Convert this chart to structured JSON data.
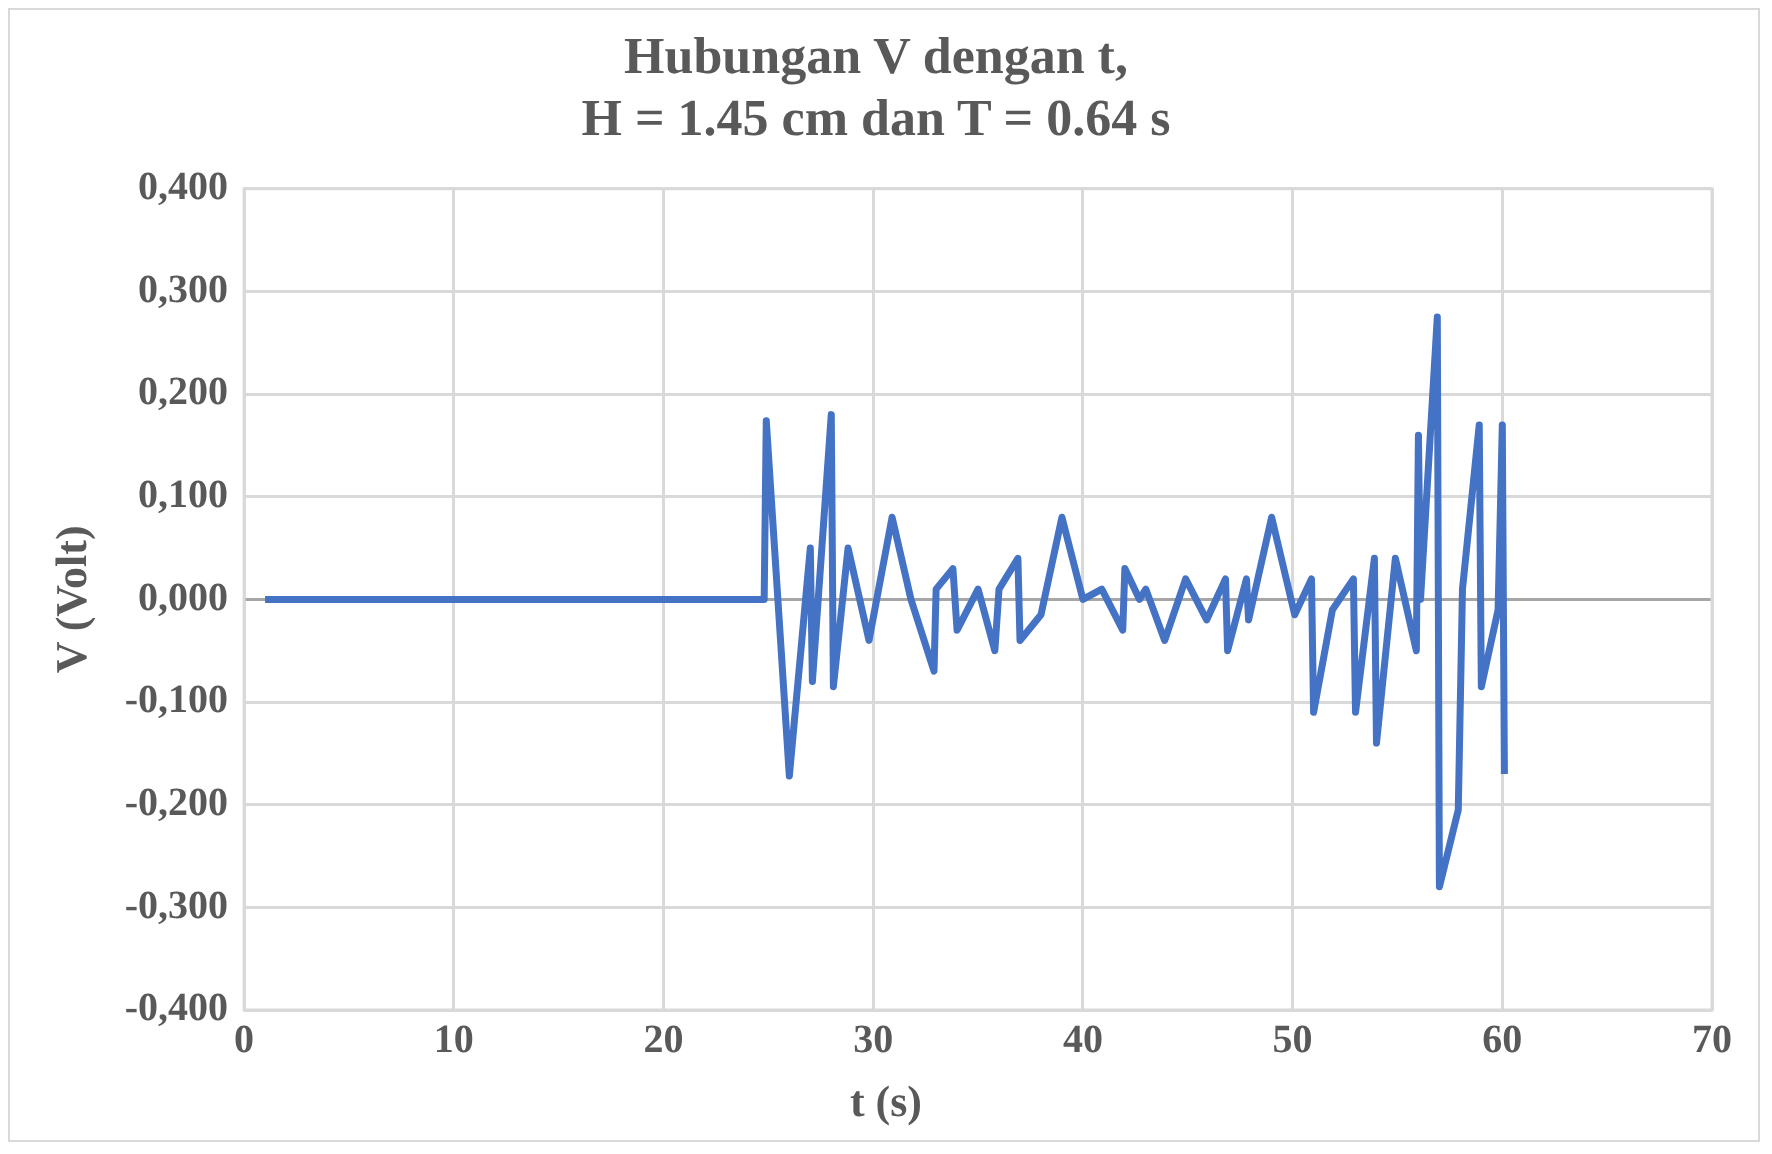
{
  "chart_data": {
    "type": "line",
    "title": "Hubungan V dengan t,\nH = 1.45 cm dan T = 0.64 s",
    "xlabel": "t (s)",
    "ylabel": "V (Volt)",
    "x": [
      1,
      24.8,
      24.9,
      26.0,
      27.0,
      27.1,
      28.0,
      28.1,
      28.8,
      29.8,
      30.9,
      31.8,
      32.9,
      33.0,
      33.8,
      34.0,
      35.0,
      35.8,
      36.0,
      36.9,
      37.0,
      38.0,
      39.0,
      40.0,
      40.9,
      41.9,
      42.0,
      42.7,
      43.0,
      43.9,
      44.9,
      45.9,
      46.8,
      46.9,
      47.8,
      47.9,
      49.0,
      50.1,
      50.9,
      51.0,
      51.9,
      52.9,
      53.0,
      53.9,
      54.0,
      54.9,
      55.9,
      56.0,
      56.1,
      56.9,
      57.0,
      57.9,
      58.1,
      58.9,
      59.0,
      59.8,
      60.0,
      60.1
    ],
    "series": [
      {
        "color": "#4472c4",
        "values": [
          0,
          0,
          0.174,
          -0.172,
          0.05,
          -0.08,
          0.18,
          -0.085,
          0.05,
          -0.04,
          0.08,
          0,
          -0.07,
          0.01,
          0.03,
          -0.03,
          0.01,
          -0.05,
          0.01,
          0.04,
          -0.04,
          -0.015,
          0.08,
          0,
          0.01,
          -0.03,
          0.03,
          0,
          0.01,
          -0.04,
          0.02,
          -0.02,
          0.02,
          -0.05,
          0.02,
          -0.02,
          0.08,
          -0.015,
          0.02,
          -0.11,
          -0.01,
          0.02,
          -0.11,
          0.04,
          -0.14,
          0.04,
          -0.05,
          0.16,
          0,
          0.275,
          -0.28,
          -0.205,
          0.01,
          0.17,
          -0.085,
          -0.01,
          0.17,
          -0.17
        ]
      }
    ],
    "xlim": [
      0,
      70
    ],
    "xticks": [
      0,
      10,
      20,
      30,
      40,
      50,
      60,
      70
    ],
    "ylim": [
      -0.4,
      0.4
    ],
    "yticks": [
      {
        "value": -0.4,
        "label": "-0,400"
      },
      {
        "value": -0.3,
        "label": "-0,300"
      },
      {
        "value": -0.2,
        "label": "-0,200"
      },
      {
        "value": -0.1,
        "label": "-0,100"
      },
      {
        "value": 0,
        "label": "0,000"
      },
      {
        "value": 0.1,
        "label": "0,100"
      },
      {
        "value": 0.2,
        "label": "0,200"
      },
      {
        "value": 0.3,
        "label": "0,300"
      },
      {
        "value": 0.4,
        "label": "0,400"
      }
    ],
    "grid": true,
    "legend": false,
    "marker": "none",
    "line_style": "solid"
  }
}
